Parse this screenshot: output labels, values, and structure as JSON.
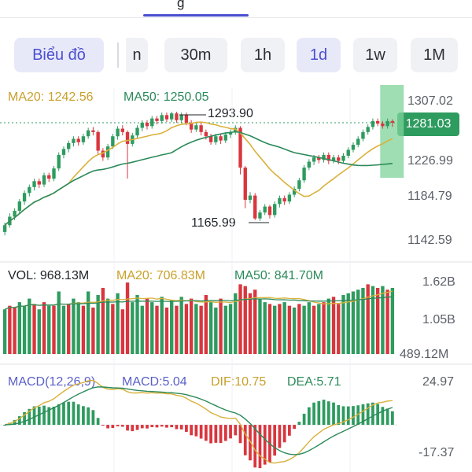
{
  "top_tab_fragment": "g",
  "timeframes": {
    "chart_btn": "Biểu đồ",
    "partial": "n",
    "t30m": "30m",
    "t1h": "1h",
    "t1d": "1d",
    "t1w": "1w",
    "t1M": "1M"
  },
  "price_panel": {
    "ma20_label": "MA20: 1242.56",
    "ma50_label": "MA50: 1250.05",
    "high_label": "1293.90",
    "low_label": "1165.99",
    "current_price": "1281.03",
    "axis": [
      "1307.02",
      "1226.99",
      "1184.79",
      "1142.59"
    ]
  },
  "volume_panel": {
    "vol_label": "VOL: 968.13M",
    "ma20_label": "MA20: 706.83M",
    "ma50_label": "MA50: 841.70M",
    "axis": [
      "1.62B",
      "1.05B",
      "489.12M"
    ]
  },
  "macd_panel": {
    "title": "MACD(12,26,9)",
    "macd_label": "MACD:5.04",
    "dif_label": "DIF:10.75",
    "dea_label": "DEA:5.71",
    "axis": [
      "24.97",
      "-17.37"
    ]
  },
  "colors": {
    "up": "#2e9b5f",
    "down": "#d9363e",
    "ma20": "#d9b13b",
    "ma50": "#2b8a5a",
    "accent": "#4b4fd1",
    "highlight": "#7fd39a"
  },
  "chart_data": {
    "type": "candlestick",
    "candles": [
      [
        1152,
        1160,
        1148,
        1163
      ],
      [
        1160,
        1170,
        1157,
        1174
      ],
      [
        1170,
        1177,
        1166,
        1180
      ],
      [
        1177,
        1188,
        1174,
        1191
      ],
      [
        1188,
        1198,
        1184,
        1201
      ],
      [
        1198,
        1205,
        1194,
        1208
      ],
      [
        1205,
        1212,
        1201,
        1215
      ],
      [
        1212,
        1208,
        1204,
        1215
      ],
      [
        1208,
        1219,
        1205,
        1222
      ],
      [
        1219,
        1215,
        1211,
        1222
      ],
      [
        1215,
        1227,
        1212,
        1230
      ],
      [
        1227,
        1243,
        1224,
        1246
      ],
      [
        1243,
        1250,
        1239,
        1253
      ],
      [
        1250,
        1257,
        1246,
        1260
      ],
      [
        1257,
        1262,
        1253,
        1265
      ],
      [
        1262,
        1258,
        1254,
        1265
      ],
      [
        1258,
        1265,
        1255,
        1268
      ],
      [
        1265,
        1272,
        1262,
        1275
      ],
      [
        1272,
        1270,
        1266,
        1276
      ],
      [
        1270,
        1248,
        1244,
        1272
      ],
      [
        1248,
        1240,
        1236,
        1251
      ],
      [
        1240,
        1253,
        1237,
        1256
      ],
      [
        1253,
        1265,
        1250,
        1268
      ],
      [
        1265,
        1274,
        1261,
        1277
      ],
      [
        1274,
        1270,
        1266,
        1278
      ],
      [
        1270,
        1256,
        1215,
        1272
      ],
      [
        1256,
        1266,
        1253,
        1269
      ],
      [
        1266,
        1275,
        1262,
        1278
      ],
      [
        1275,
        1281,
        1271,
        1284
      ],
      [
        1281,
        1277,
        1273,
        1284
      ],
      [
        1277,
        1286,
        1274,
        1289
      ],
      [
        1286,
        1283,
        1279,
        1289
      ],
      [
        1283,
        1290,
        1280,
        1293
      ],
      [
        1290,
        1285,
        1282,
        1293
      ],
      [
        1285,
        1292,
        1282,
        1294
      ],
      [
        1292,
        1284,
        1281,
        1294
      ],
      [
        1284,
        1290,
        1281,
        1293
      ],
      [
        1290,
        1281,
        1278,
        1293
      ],
      [
        1281,
        1273,
        1269,
        1284
      ],
      [
        1273,
        1278,
        1270,
        1281
      ],
      [
        1278,
        1270,
        1266,
        1281
      ],
      [
        1270,
        1265,
        1261,
        1273
      ],
      [
        1265,
        1258,
        1255,
        1268
      ],
      [
        1258,
        1265,
        1255,
        1268
      ],
      [
        1265,
        1260,
        1256,
        1268
      ],
      [
        1260,
        1267,
        1257,
        1270
      ],
      [
        1267,
        1270,
        1263,
        1273
      ],
      [
        1270,
        1275,
        1267,
        1278
      ],
      [
        1275,
        1228,
        1220,
        1277
      ],
      [
        1228,
        1190,
        1180,
        1230
      ],
      [
        1190,
        1195,
        1186,
        1199
      ],
      [
        1195,
        1168,
        1166,
        1198
      ],
      [
        1168,
        1175,
        1165,
        1178
      ],
      [
        1175,
        1182,
        1172,
        1185
      ],
      [
        1182,
        1172,
        1168,
        1184
      ],
      [
        1172,
        1185,
        1169,
        1188
      ],
      [
        1185,
        1192,
        1181,
        1195
      ],
      [
        1192,
        1188,
        1184,
        1195
      ],
      [
        1188,
        1196,
        1185,
        1199
      ],
      [
        1196,
        1203,
        1193,
        1206
      ],
      [
        1203,
        1213,
        1200,
        1216
      ],
      [
        1213,
        1228,
        1210,
        1231
      ],
      [
        1228,
        1235,
        1225,
        1238
      ],
      [
        1235,
        1240,
        1231,
        1243
      ],
      [
        1240,
        1237,
        1233,
        1243
      ],
      [
        1237,
        1243,
        1234,
        1246
      ],
      [
        1243,
        1236,
        1232,
        1246
      ],
      [
        1236,
        1240,
        1233,
        1243
      ],
      [
        1240,
        1236,
        1232,
        1243
      ],
      [
        1236,
        1242,
        1233,
        1245
      ],
      [
        1242,
        1249,
        1239,
        1252
      ],
      [
        1249,
        1255,
        1246,
        1258
      ],
      [
        1255,
        1262,
        1252,
        1265
      ],
      [
        1262,
        1270,
        1259,
        1273
      ],
      [
        1270,
        1276,
        1267,
        1279
      ],
      [
        1276,
        1283,
        1273,
        1286
      ],
      [
        1283,
        1280,
        1277,
        1286
      ],
      [
        1280,
        1277,
        1274,
        1283
      ],
      [
        1277,
        1283,
        1274,
        1286
      ],
      [
        1283,
        1281.03,
        1276,
        1285
      ]
    ],
    "volume": [
      [
        0.9,
        0
      ],
      [
        1.0,
        1
      ],
      [
        0.95,
        1
      ],
      [
        1.1,
        0
      ],
      [
        1.0,
        0
      ],
      [
        1.2,
        0
      ],
      [
        1.05,
        1
      ],
      [
        0.9,
        0
      ],
      [
        1.1,
        1
      ],
      [
        1.0,
        0
      ],
      [
        1.0,
        1
      ],
      [
        1.4,
        0
      ],
      [
        1.0,
        0
      ],
      [
        1.05,
        1
      ],
      [
        1.2,
        0
      ],
      [
        1.1,
        0
      ],
      [
        1.0,
        1
      ],
      [
        1.4,
        0
      ],
      [
        0.95,
        1
      ],
      [
        1.3,
        0
      ],
      [
        1.5,
        1
      ],
      [
        1.2,
        0
      ],
      [
        1.05,
        1
      ],
      [
        1.35,
        0
      ],
      [
        0.9,
        1
      ],
      [
        1.65,
        1
      ],
      [
        1.1,
        0
      ],
      [
        1.3,
        0
      ],
      [
        1.0,
        0
      ],
      [
        1.2,
        1
      ],
      [
        1.1,
        0
      ],
      [
        1.0,
        1
      ],
      [
        1.25,
        0
      ],
      [
        0.95,
        1
      ],
      [
        1.15,
        0
      ],
      [
        1.0,
        1
      ],
      [
        1.25,
        0
      ],
      [
        1.05,
        1
      ],
      [
        1.2,
        1
      ],
      [
        1.05,
        0
      ],
      [
        1.0,
        1
      ],
      [
        1.3,
        1
      ],
      [
        1.1,
        0
      ],
      [
        0.95,
        0
      ],
      [
        1.2,
        1
      ],
      [
        1.0,
        0
      ],
      [
        1.05,
        0
      ],
      [
        1.35,
        0
      ],
      [
        1.6,
        1
      ],
      [
        1.55,
        1
      ],
      [
        1.35,
        1
      ],
      [
        1.45,
        1
      ],
      [
        1.2,
        0
      ],
      [
        1.1,
        0
      ],
      [
        1.05,
        1
      ],
      [
        1.0,
        0
      ],
      [
        1.05,
        1
      ],
      [
        1.1,
        0
      ],
      [
        1.0,
        1
      ],
      [
        0.95,
        0
      ],
      [
        1.05,
        1
      ],
      [
        1.0,
        0
      ],
      [
        1.1,
        0
      ],
      [
        1.0,
        1
      ],
      [
        1.05,
        0
      ],
      [
        1.1,
        1
      ],
      [
        1.2,
        0
      ],
      [
        1.25,
        1
      ],
      [
        1.05,
        1
      ],
      [
        1.3,
        0
      ],
      [
        1.35,
        0
      ],
      [
        1.4,
        0
      ],
      [
        1.45,
        0
      ],
      [
        1.5,
        0
      ],
      [
        1.6,
        1
      ],
      [
        1.55,
        0
      ],
      [
        1.5,
        1
      ],
      [
        1.55,
        0
      ],
      [
        1.45,
        1
      ],
      [
        1.5,
        0
      ]
    ]
  }
}
